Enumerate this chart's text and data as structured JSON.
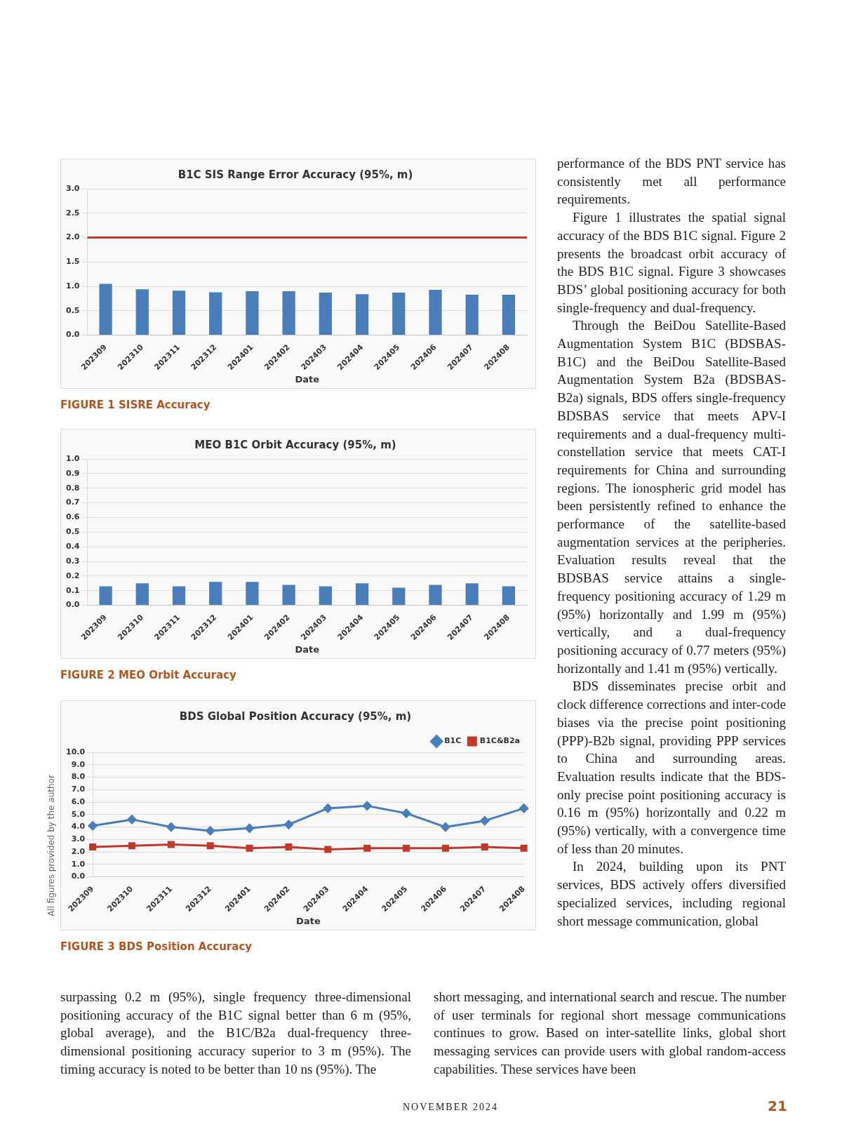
{
  "chart_data": [
    {
      "type": "bar",
      "title": "B1C SIS Range Error Accuracy (95%, m)",
      "xlabel": "Date",
      "categories": [
        "202309",
        "202310",
        "202311",
        "202312",
        "202401",
        "202402",
        "202403",
        "202404",
        "202405",
        "202406",
        "202407",
        "202408"
      ],
      "values": [
        1.05,
        0.94,
        0.91,
        0.88,
        0.9,
        0.9,
        0.87,
        0.84,
        0.87,
        0.93,
        0.83,
        0.83
      ],
      "color": "#4a7ebb",
      "ylim": [
        0,
        3
      ],
      "yticks": [
        {
          "value": 0,
          "label": "0.0"
        },
        {
          "value": 0.5,
          "label": "0.5"
        },
        {
          "value": 1,
          "label": "1.0"
        },
        {
          "value": 1.5,
          "label": "1.5"
        },
        {
          "value": 2,
          "label": "2.0"
        },
        {
          "value": 2.5,
          "label": "2.5"
        },
        {
          "value": 3,
          "label": "3.0"
        }
      ],
      "ref_lines": [
        {
          "axis": "y",
          "value": 2,
          "color": "#c0392b"
        }
      ],
      "grid": "y",
      "annotations": [
        "FIGURE 1 SISRE Accuracy"
      ]
    },
    {
      "type": "bar",
      "title": "MEO B1C Orbit Accuracy (95%, m)",
      "xlabel": "Date",
      "categories": [
        "202309",
        "202310",
        "202311",
        "202312",
        "202401",
        "202402",
        "202403",
        "202404",
        "202405",
        "202406",
        "202407",
        "202408"
      ],
      "values": [
        0.13,
        0.15,
        0.13,
        0.16,
        0.16,
        0.14,
        0.13,
        0.15,
        0.12,
        0.14,
        0.15,
        0.13
      ],
      "color": "#4a7ebb",
      "ylim": [
        0,
        1
      ],
      "yticks": [
        {
          "value": 0,
          "label": "0.0"
        },
        {
          "value": 0.1,
          "label": "0.1"
        },
        {
          "value": 0.2,
          "label": "0.2"
        },
        {
          "value": 0.3,
          "label": "0.3"
        },
        {
          "value": 0.4,
          "label": "0.4"
        },
        {
          "value": 0.5,
          "label": "0.5"
        },
        {
          "value": 0.6,
          "label": "0.6"
        },
        {
          "value": 0.7,
          "label": "0.7"
        },
        {
          "value": 0.8,
          "label": "0.8"
        },
        {
          "value": 0.9,
          "label": "0.9"
        },
        {
          "value": 1,
          "label": "1.0"
        }
      ],
      "grid": "y",
      "annotations": [
        "FIGURE 2 MEO Orbit Accuracy"
      ]
    },
    {
      "type": "line",
      "title": "BDS Global Position Accuracy (95%, m)",
      "xlabel": "Date",
      "categories": [
        "202309",
        "202310",
        "202311",
        "202312",
        "202401",
        "202402",
        "202403",
        "202404",
        "202405",
        "202406",
        "202407",
        "202408"
      ],
      "series": [
        {
          "name": "B1C",
          "color": "#4a7ebb",
          "marker": "diamond",
          "values": [
            4.1,
            4.6,
            4.0,
            3.7,
            3.9,
            4.2,
            5.5,
            5.7,
            5.1,
            4.0,
            4.5,
            5.5
          ]
        },
        {
          "name": "B1C&B2a",
          "color": "#c0392b",
          "marker": "square",
          "values": [
            2.4,
            2.5,
            2.6,
            2.5,
            2.3,
            2.4,
            2.2,
            2.3,
            2.3,
            2.3,
            2.4,
            2.3
          ]
        }
      ],
      "ylim": [
        0,
        10
      ],
      "yticks": [
        {
          "value": 0,
          "label": "0.0"
        },
        {
          "value": 1,
          "label": "1.0"
        },
        {
          "value": 2,
          "label": "2.0"
        },
        {
          "value": 3,
          "label": "3.0"
        },
        {
          "value": 4,
          "label": "4.0"
        },
        {
          "value": 5,
          "label": "5.0"
        },
        {
          "value": 6,
          "label": "6.0"
        },
        {
          "value": 7,
          "label": "7.0"
        },
        {
          "value": 8,
          "label": "8.0"
        },
        {
          "value": 9,
          "label": "9.0"
        },
        {
          "value": 10,
          "label": "10.0"
        }
      ],
      "grid": "y",
      "legend": "top right",
      "line_style": "solid",
      "annotations": [
        "FIGURE 3 BDS Position Accuracy"
      ]
    },
    {
      "type": "other",
      "annotations": [
        "performance of the BDS PNT service has consistently met all performance requirements.",
        "Figure 1 illustrates the spatial signal accuracy of the BDS B1C signal. Figure 2 presents the broadcast orbit accuracy of the BDS B1C signal. Figure 3 showcases BDS’ global positioning accuracy for both single-frequency and dual-frequency.",
        "Through the BeiDou Satellite-Based Augmentation System B1C (BDSBAS-B1C) and the BeiDou Satellite-Based Augmentation System B2a (BDSBAS-B2a) signals, BDS offers single-frequency BDSBAS service that meets APV-I requirements and a dual-frequency multi-constellation service that meets CAT-I requirements for China and surrounding regions. The ionospheric grid model has been persistently refined to enhance the performance of the satellite-based augmentation services at the peripheries. Evaluation results reveal that the BDSBAS service attains a single-frequency positioning accuracy of 1.29 m (95%) horizontally and 1.99 m (95%) vertically, and a dual-frequency positioning accuracy of 0.77 meters (95%) horizontally and 1.41 m (95%) vertically.",
        "BDS disseminates precise orbit and clock difference corrections and inter-code biases via the precise point positioning (PPP)-B2b signal, providing PPP services to China and surrounding areas. Evaluation results indicate that the BDS-only precise point positioning accuracy is 0.16 m (95%) horizontally and 0.22 m (95%) vertically, with a convergence time of less than 20 minutes.",
        "In 2024, building upon its PNT services, BDS actively offers diversified specialized services, including regional short message communication, global",
        "surpassing 0.2 m (95%), single frequency three-dimensional positioning accuracy of the B1C signal better than 6 m (95%, global average), and the B1C/B2a dual-frequency three-dimensional positioning accuracy superior to 3 m (95%). The timing accuracy is noted to be better than 10 ns (95%). The",
        "short messaging, and international search and rescue. The number of user terminals for regional short message communications continues to grow. Based on inter-satellite links, global short messaging services can provide users with global random-access capabilities. These services have been",
        "All figures provided by the author",
        "NOVEMBER 2024",
        "21"
      ]
    }
  ]
}
